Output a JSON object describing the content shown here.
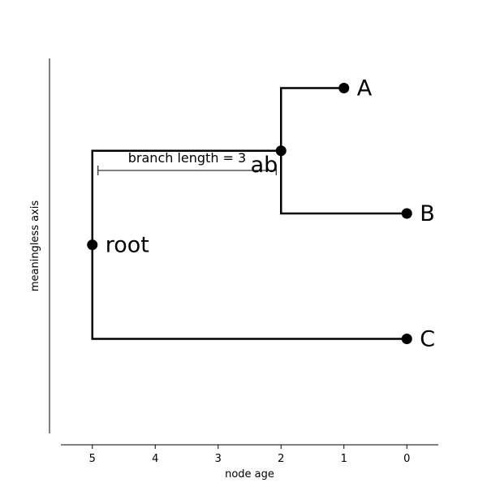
{
  "chart_data": {
    "type": "tree",
    "xlabel": "node age",
    "ylabel": "meaningless axis",
    "xlim": [
      5.5,
      -0.5
    ],
    "ylim": [
      0,
      4
    ],
    "xticks": [
      5,
      4,
      3,
      2,
      1,
      0
    ],
    "nodes": [
      {
        "id": "root",
        "label": "root",
        "age": 5,
        "y": 1.75
      },
      {
        "id": "ab",
        "label": "ab",
        "age": 2,
        "y": 2.5
      },
      {
        "id": "A",
        "label": "A",
        "age": 1,
        "y": 3.0
      },
      {
        "id": "B",
        "label": "B",
        "age": 0,
        "y": 2.0
      },
      {
        "id": "C",
        "label": "C",
        "age": 0,
        "y": 1.0
      }
    ],
    "edges": [
      {
        "from": "root",
        "to": "ab"
      },
      {
        "from": "root",
        "to": "C"
      },
      {
        "from": "ab",
        "to": "A"
      },
      {
        "from": "ab",
        "to": "B"
      }
    ],
    "annotation": {
      "text": "branch length = 3",
      "from_age": 5,
      "to_age": 2
    }
  }
}
